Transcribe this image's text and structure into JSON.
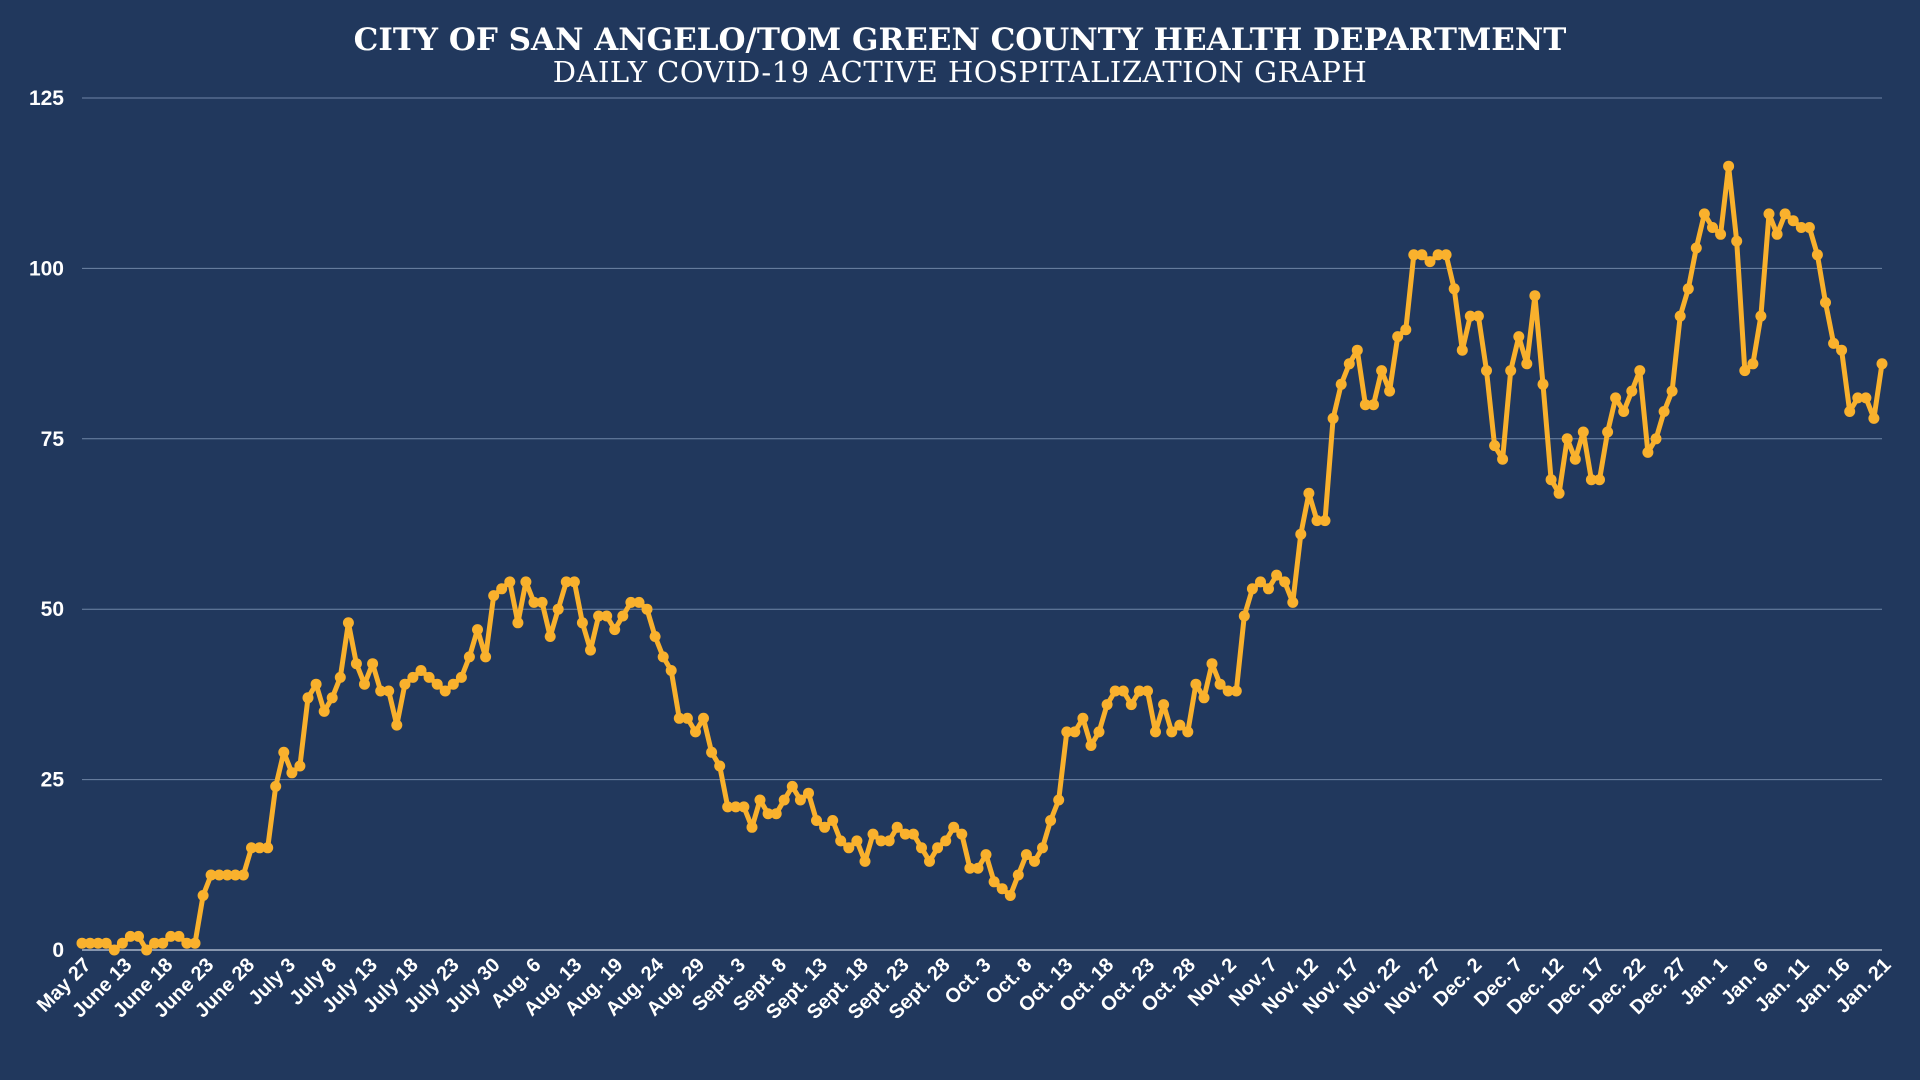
{
  "colors": {
    "background": "#21385d",
    "series": "#f9b12d",
    "text": "#ffffff"
  },
  "chart_data": {
    "type": "line",
    "title": "CITY OF SAN ANGELO/TOM GREEN COUNTY HEALTH DEPARTMENT",
    "subtitle": "DAILY COVID-19 ACTIVE HOSPITALIZATION GRAPH",
    "xlabel": "",
    "ylabel": "",
    "ylim": [
      0,
      125
    ],
    "yticks": [
      0,
      25,
      50,
      75,
      100,
      125
    ],
    "grid": true,
    "legend": "none",
    "tick_labels": [
      "May 27",
      "June 13",
      "June 18",
      "June 23",
      "June 28",
      "July 3",
      "July 8",
      "July 13",
      "July 18",
      "July 23",
      "July 30",
      "Aug. 6",
      "Aug. 13",
      "Aug. 19",
      "Aug. 24",
      "Aug. 29",
      "Sept. 3",
      "Sept. 8",
      "Sept. 13",
      "Sept. 18",
      "Sept. 23",
      "Sept. 28",
      "Oct. 3",
      "Oct. 8",
      "Oct. 13",
      "Oct. 18",
      "Oct. 23",
      "Oct. 28",
      "Nov. 2",
      "Nov. 7",
      "Nov. 12",
      "Nov. 17",
      "Nov. 22",
      "Nov. 27",
      "Dec. 2",
      "Dec. 7",
      "Dec. 12",
      "Dec. 17",
      "Dec. 22",
      "Dec. 27",
      "Jan. 1",
      "Jan. 6",
      "Jan. 11",
      "Jan. 16",
      "Jan. 21"
    ],
    "series": [
      {
        "values": [
          1,
          1,
          1,
          1,
          0,
          1,
          2,
          2,
          0,
          1,
          1,
          2,
          2,
          1,
          1,
          8,
          11,
          11,
          11,
          11,
          11,
          15,
          15,
          15,
          24,
          29,
          26,
          27,
          37,
          39,
          35,
          37,
          40,
          48,
          42,
          39,
          42,
          38,
          38,
          33,
          39,
          40,
          41,
          40,
          39,
          38,
          39,
          40,
          43,
          47,
          43,
          52,
          53,
          54,
          48,
          54,
          51,
          51,
          46,
          50,
          54,
          54,
          48,
          44,
          49,
          49,
          47,
          49,
          51,
          51,
          50,
          46,
          43,
          41,
          34,
          34,
          32,
          34,
          29,
          27,
          21,
          21,
          21,
          18,
          22,
          20,
          20,
          22,
          24,
          22,
          23,
          19,
          18,
          19,
          16,
          15,
          16,
          13,
          17,
          16,
          16,
          18,
          17,
          17,
          15,
          13,
          15,
          16,
          18,
          17,
          12,
          12,
          14,
          10,
          9,
          8,
          11,
          14,
          13,
          15,
          19,
          22,
          32,
          32,
          34,
          30,
          32,
          36,
          38,
          38,
          36,
          38,
          38,
          32,
          36,
          32,
          33,
          32,
          39,
          37,
          42,
          39,
          38,
          38,
          49,
          53,
          54,
          53,
          55,
          54,
          51,
          61,
          67,
          63,
          63,
          78,
          83,
          86,
          88,
          80,
          80,
          85,
          82,
          90,
          91,
          102,
          102,
          101,
          102,
          102,
          97,
          88,
          93,
          93,
          85,
          74,
          72,
          85,
          90,
          86,
          96,
          83,
          69,
          67,
          75,
          72,
          76,
          69,
          69,
          76,
          81,
          79,
          82,
          85,
          73,
          75,
          79,
          82,
          93,
          97,
          103,
          108,
          106,
          105,
          115,
          104,
          85,
          86,
          93,
          108,
          105,
          108,
          107,
          106,
          106,
          102,
          95,
          89,
          88,
          79,
          81,
          81,
          78,
          86
        ]
      }
    ]
  }
}
